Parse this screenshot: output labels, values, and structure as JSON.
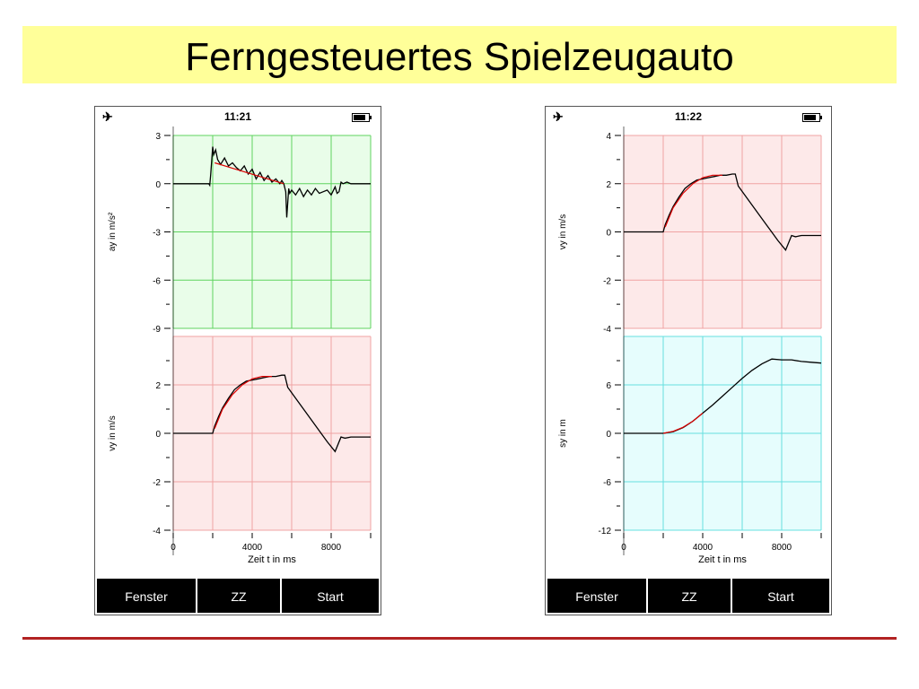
{
  "slide": {
    "title": "Ferngesteuertes Spielzeugauto"
  },
  "colors": {
    "green_bg": "#e9fde9",
    "green_grid": "#5fd35f",
    "red_bg": "#fde9e9",
    "red_grid": "#f0a3a3",
    "cyan_bg": "#e6fdfd",
    "cyan_grid": "#66e0e0",
    "fit_line": "#dd0000",
    "data_line": "#000000",
    "accent_line": "#b22222"
  },
  "phones": [
    {
      "time": "11:21",
      "status_icons": [
        "airplane-icon",
        "battery-icon"
      ],
      "tabs": [
        "Fenster",
        "ZZ",
        "Start"
      ]
    },
    {
      "time": "11:22",
      "status_icons": [
        "airplane-icon",
        "battery-icon"
      ],
      "tabs": [
        "Fenster",
        "ZZ",
        "Start"
      ]
    }
  ],
  "chart_data": [
    {
      "type": "line",
      "phone": 0,
      "panel": "top",
      "ylabel": "ay in m/s²",
      "xlabel": "",
      "xlim": [
        0,
        10000
      ],
      "ylim": [
        -9,
        3
      ],
      "yticks": [
        3,
        0,
        -3,
        -6,
        -9
      ],
      "xgrid": [
        0,
        2000,
        4000,
        6000,
        8000,
        10000
      ],
      "ygrid": [
        3,
        0,
        -3,
        -6,
        -9
      ],
      "background": "green",
      "series": [
        {
          "role": "data",
          "x": [
            0,
            1800,
            1850,
            1900,
            2000,
            2050,
            2150,
            2250,
            2400,
            2600,
            2800,
            3000,
            3200,
            3400,
            3600,
            3800,
            4000,
            4200,
            4400,
            4600,
            4800,
            5000,
            5200,
            5400,
            5500,
            5600,
            5700,
            5750,
            5800,
            5850,
            5900,
            6000,
            6200,
            6400,
            6600,
            6800,
            7000,
            7200,
            7400,
            7600,
            7800,
            8000,
            8200,
            8300,
            8400,
            8500,
            8600,
            8800,
            9000,
            9500,
            10000
          ],
          "y": [
            0,
            0,
            -0.1,
            0.6,
            2.3,
            1.8,
            2.1,
            1.5,
            1.2,
            1.6,
            1.1,
            1.3,
            1.0,
            0.8,
            1.1,
            0.6,
            0.9,
            0.3,
            0.7,
            0.2,
            0.5,
            0.1,
            0.3,
            0.0,
            0.2,
            0.0,
            -0.5,
            -2.1,
            -1.2,
            -0.3,
            -0.6,
            -0.4,
            -0.7,
            -0.3,
            -0.8,
            -0.4,
            -0.7,
            -0.3,
            -0.6,
            -0.5,
            -0.4,
            -0.7,
            -0.2,
            -0.6,
            -0.5,
            0.1,
            0.0,
            0.1,
            0.0,
            0.0,
            0.0
          ]
        },
        {
          "role": "fit",
          "x": [
            2100,
            5600
          ],
          "y": [
            1.3,
            0.0
          ]
        }
      ]
    },
    {
      "type": "line",
      "phone": 0,
      "panel": "bottom",
      "ylabel": "vy in m/s",
      "xlabel": "Zeit t in ms",
      "xlim": [
        0,
        10000
      ],
      "ylim": [
        -4,
        4
      ],
      "yticks": [
        2,
        0,
        -2,
        -4
      ],
      "xticks": [
        0,
        4000,
        8000
      ],
      "xgrid": [
        0,
        2000,
        4000,
        6000,
        8000,
        10000
      ],
      "ygrid": [
        4,
        2,
        0,
        -2,
        -4
      ],
      "background": "red",
      "series": [
        {
          "role": "data",
          "x": [
            0,
            2000,
            2100,
            2300,
            2500,
            2800,
            3100,
            3400,
            3700,
            4000,
            4300,
            4600,
            4900,
            5200,
            5500,
            5650,
            5800,
            6200,
            6600,
            7000,
            7400,
            7800,
            8200,
            8500,
            8700,
            9000,
            9500,
            10000
          ],
          "y": [
            0,
            0,
            0.3,
            0.7,
            1.05,
            1.45,
            1.8,
            2.0,
            2.15,
            2.2,
            2.25,
            2.3,
            2.35,
            2.35,
            2.4,
            2.4,
            1.9,
            1.45,
            1.0,
            0.55,
            0.1,
            -0.35,
            -0.75,
            -0.15,
            -0.2,
            -0.15,
            -0.15,
            -0.15
          ]
        },
        {
          "role": "fit",
          "x": [
            2100,
            2500,
            3000,
            3500,
            4000,
            4500,
            5000
          ],
          "y": [
            0.2,
            1.0,
            1.6,
            2.0,
            2.25,
            2.35,
            2.35
          ]
        }
      ]
    },
    {
      "type": "line",
      "phone": 1,
      "panel": "top",
      "ylabel": "vy in m/s",
      "xlabel": "",
      "xlim": [
        0,
        10000
      ],
      "ylim": [
        -4,
        4
      ],
      "yticks": [
        4,
        2,
        0,
        -2,
        -4
      ],
      "xgrid": [
        0,
        2000,
        4000,
        6000,
        8000,
        10000
      ],
      "ygrid": [
        4,
        2,
        0,
        -2,
        -4
      ],
      "background": "red",
      "series": [
        {
          "role": "data",
          "x": [
            0,
            2000,
            2100,
            2300,
            2500,
            2800,
            3100,
            3400,
            3700,
            4000,
            4300,
            4600,
            4900,
            5200,
            5500,
            5650,
            5800,
            6200,
            6600,
            7000,
            7400,
            7800,
            8200,
            8500,
            8700,
            9000,
            9500,
            10000
          ],
          "y": [
            0,
            0,
            0.3,
            0.7,
            1.05,
            1.45,
            1.8,
            2.0,
            2.15,
            2.2,
            2.25,
            2.3,
            2.35,
            2.35,
            2.4,
            2.4,
            1.9,
            1.45,
            1.0,
            0.55,
            0.1,
            -0.35,
            -0.75,
            -0.15,
            -0.2,
            -0.15,
            -0.15,
            -0.15
          ]
        },
        {
          "role": "fit",
          "x": [
            2100,
            2500,
            3000,
            3500,
            4000,
            4500,
            5000
          ],
          "y": [
            0.2,
            1.0,
            1.6,
            2.0,
            2.25,
            2.35,
            2.35
          ]
        }
      ]
    },
    {
      "type": "line",
      "phone": 1,
      "panel": "bottom",
      "ylabel": "sy in m",
      "xlabel": "Zeit t in ms",
      "xlim": [
        0,
        10000
      ],
      "ylim": [
        -12,
        12
      ],
      "yticks": [
        6,
        0,
        -6,
        -12
      ],
      "xticks": [
        0,
        4000,
        8000
      ],
      "xgrid": [
        0,
        2000,
        4000,
        6000,
        8000,
        10000
      ],
      "ygrid": [
        12,
        6,
        0,
        -6,
        -12
      ],
      "background": "cyan",
      "series": [
        {
          "role": "data",
          "x": [
            0,
            2000,
            2500,
            3000,
            3500,
            4000,
            4500,
            5000,
            5500,
            6000,
            6500,
            7000,
            7500,
            8000,
            8500,
            9000,
            9500,
            10000
          ],
          "y": [
            0,
            0,
            0.2,
            0.7,
            1.5,
            2.5,
            3.5,
            4.6,
            5.7,
            6.8,
            7.8,
            8.6,
            9.2,
            9.1,
            9.1,
            8.9,
            8.8,
            8.7
          ]
        },
        {
          "role": "fit",
          "x": [
            2000,
            2500,
            3000,
            3500,
            4000
          ],
          "y": [
            0,
            0.25,
            0.75,
            1.5,
            2.5
          ]
        }
      ]
    }
  ]
}
